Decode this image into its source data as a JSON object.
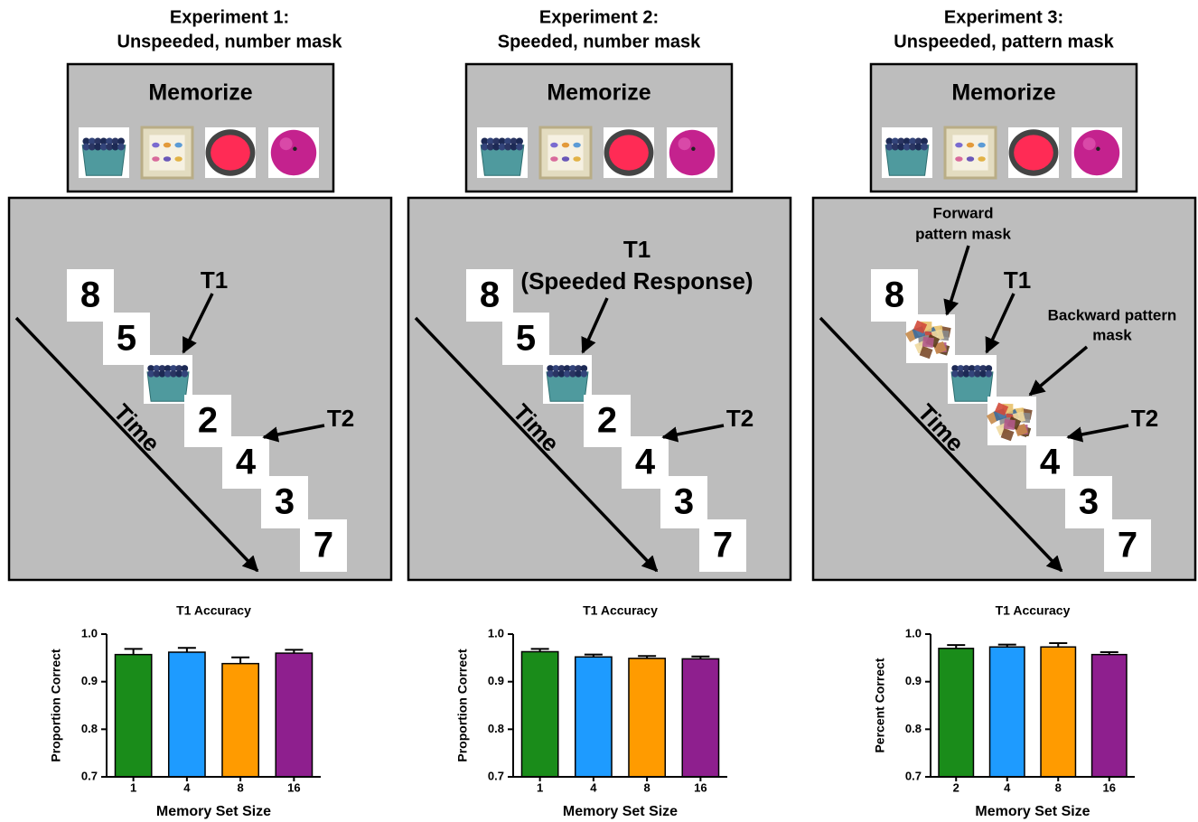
{
  "panels": [
    {
      "title": [
        "Experiment 1:",
        "Unspeeded, number mask"
      ],
      "memorize": "Memorize",
      "stream": [
        "8",
        "5",
        null,
        "2",
        "4",
        "3",
        "7"
      ],
      "annotations": {
        "t1": [
          "T1"
        ],
        "t2": "T2",
        "time": "Time"
      }
    },
    {
      "title": [
        "Experiment 2:",
        "Speeded, number mask"
      ],
      "memorize": "Memorize",
      "stream": [
        "8",
        "5",
        null,
        "2",
        "4",
        "3",
        "7"
      ],
      "annotations": {
        "t1": [
          "T1",
          "(Speeded Response)"
        ],
        "t2": "T2",
        "time": "Time"
      }
    },
    {
      "title": [
        "Experiment 3:",
        "Unspeeded, pattern mask"
      ],
      "memorize": "Memorize",
      "stream": [
        "8",
        null,
        null,
        null,
        "4",
        "3",
        "7"
      ],
      "annotations": {
        "t1": [
          "T1"
        ],
        "t2": "T2",
        "time": "Time",
        "forward": [
          "Forward",
          "pattern mask"
        ],
        "backward": [
          "Backward pattern",
          "mask"
        ]
      }
    }
  ],
  "chart_data": [
    {
      "type": "bar",
      "title": "T1 Accuracy",
      "x_label": "Memory Set Size",
      "y_label": "Proportion Correct",
      "categories": [
        "1",
        "4",
        "8",
        "16"
      ],
      "values": [
        0.957,
        0.962,
        0.938,
        0.96
      ],
      "errors": [
        0.012,
        0.009,
        0.013,
        0.007
      ],
      "colors": [
        "#1a8c1a",
        "#1e9bff",
        "#ff9b00",
        "#8e1f8e"
      ],
      "ylim": [
        0.7,
        1.0
      ],
      "yticks": [
        0.7,
        0.8,
        0.9,
        {
          "value": 1.0,
          "label": "1.0"
        }
      ]
    },
    {
      "type": "bar",
      "title": "T1 Accuracy",
      "x_label": "Memory Set Size",
      "y_label": "Proportion Correct",
      "categories": [
        "1",
        "4",
        "8",
        "16"
      ],
      "values": [
        0.963,
        0.952,
        0.949,
        0.948
      ],
      "errors": [
        0.006,
        0.005,
        0.005,
        0.005
      ],
      "colors": [
        "#1a8c1a",
        "#1e9bff",
        "#ff9b00",
        "#8e1f8e"
      ],
      "ylim": [
        0.7,
        1.0
      ],
      "yticks": [
        0.7,
        0.8,
        0.9,
        {
          "value": 1.0,
          "label": "1.0"
        }
      ]
    },
    {
      "type": "bar",
      "title": "T1 Accuracy",
      "x_label": "Memory Set Size",
      "y_label": "Percent Correct",
      "categories": [
        "2",
        "4",
        "8",
        "16"
      ],
      "values": [
        0.97,
        0.973,
        0.973,
        0.957
      ],
      "errors": [
        0.007,
        0.005,
        0.008,
        0.005
      ],
      "colors": [
        "#1a8c1a",
        "#1e9bff",
        "#ff9b00",
        "#8e1f8e"
      ],
      "ylim": [
        0.7,
        1.0
      ],
      "yticks": [
        0.7,
        0.8,
        0.9,
        {
          "value": 1.0,
          "label": "1.0"
        }
      ]
    }
  ]
}
